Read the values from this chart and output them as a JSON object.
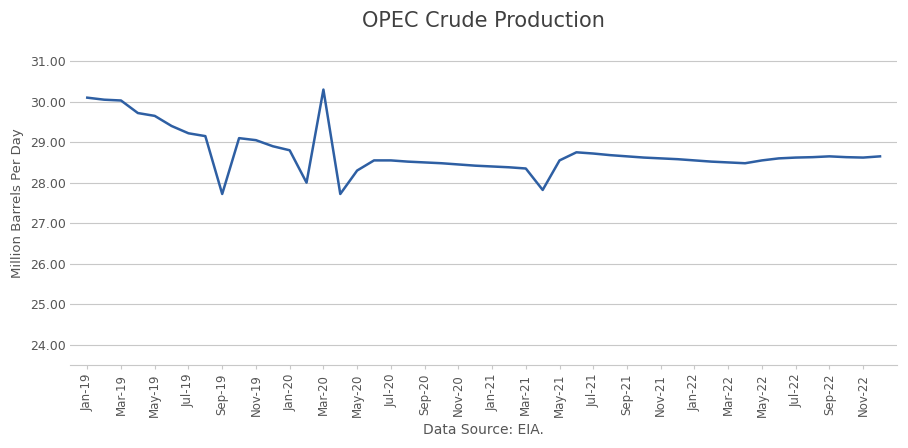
{
  "title": "OPEC Crude Production",
  "xlabel": "Data Source: EIA.",
  "ylabel": "Million Barrels Per Day",
  "line_color": "#2E5FA3",
  "background_color": "#ffffff",
  "plot_bg_color": "#ffffff",
  "grid_color": "#c8c8c8",
  "ylim": [
    23.5,
    31.5
  ],
  "yticks": [
    24.0,
    25.0,
    26.0,
    27.0,
    28.0,
    29.0,
    30.0,
    31.0
  ],
  "labels": [
    "Jan-19",
    "Mar-19",
    "May-19",
    "Jul-19",
    "Sep-19",
    "Nov-19",
    "Jan-20",
    "Mar-20",
    "May-20",
    "Jul-20",
    "Sep-20",
    "Nov-20",
    "Jan-21",
    "Mar-21",
    "May-21",
    "Jul-21",
    "Sep-21",
    "Nov-21",
    "Jan-22",
    "Mar-22",
    "May-22",
    "Jul-22",
    "Sep-22",
    "Nov-22"
  ],
  "monthly_values": [
    30.1,
    30.05,
    30.03,
    29.72,
    29.65,
    29.4,
    29.22,
    29.15,
    27.72,
    29.1,
    29.05,
    28.9,
    28.8,
    28.0,
    30.3,
    27.72,
    28.3,
    28.55,
    28.55,
    28.52,
    28.5,
    28.48,
    28.45,
    28.42,
    28.4,
    28.38,
    28.35,
    27.82,
    28.55,
    28.75,
    28.72,
    28.68,
    28.65,
    28.62,
    28.6,
    28.58,
    28.55,
    28.52,
    28.5,
    28.48,
    28.55,
    28.6,
    28.62,
    28.63,
    28.65,
    28.63,
    28.62,
    28.65
  ],
  "title_fontsize": 15,
  "ylabel_fontsize": 9.5,
  "xlabel_fontsize": 10,
  "tick_fontsize": 8.5
}
